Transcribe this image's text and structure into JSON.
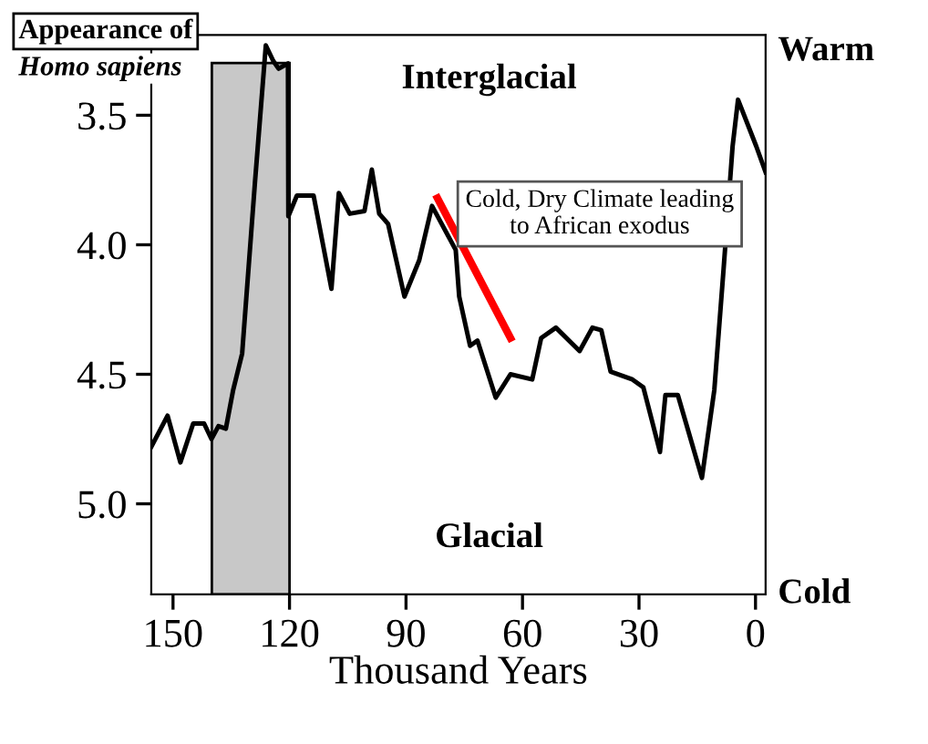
{
  "chart_data": {
    "type": "line",
    "xlabel": "Thousand Years",
    "xlim": [
      155.6,
      -2.6
    ],
    "xticks": [
      150,
      120,
      90,
      60,
      30,
      0
    ],
    "ylim": [
      5.35,
      3.19
    ],
    "yticks": [
      3.5,
      {
        "value": 4.0,
        "label": "4.0"
      },
      4.5,
      {
        "value": 5.0,
        "label": "5.0"
      }
    ],
    "grid": false,
    "legend": false,
    "series": [
      {
        "color": "#000000",
        "x": [
          155.6,
          151.4,
          148.1,
          144.8,
          142.0,
          140.1,
          138.3,
          136.4,
          134.5,
          132.2,
          128.9,
          126.1,
          124.2,
          122.8,
          120.4,
          120.3,
          118.1,
          113.8,
          111.5,
          109.2,
          107.3,
          104.5,
          100.7,
          98.8,
          96.9,
          94.6,
          90.4,
          86.6,
          83.3,
          77.2,
          76.3,
          73.5,
          71.6,
          66.9,
          63.1,
          57.5,
          55.2,
          51.4,
          45.3,
          42.0,
          39.7,
          37.3,
          31.7,
          28.9,
          27.0,
          24.6,
          23.2,
          20.0,
          13.8,
          10.6,
          8.2,
          5.9,
          4.5,
          -0.2,
          -2.6
        ],
        "values": [
          4.78,
          4.66,
          4.84,
          4.69,
          4.69,
          4.75,
          4.7,
          4.71,
          4.56,
          4.42,
          3.76,
          3.23,
          3.29,
          3.32,
          3.3,
          3.89,
          3.81,
          3.81,
          3.99,
          4.17,
          3.8,
          3.88,
          3.87,
          3.71,
          3.88,
          3.92,
          4.2,
          4.06,
          3.85,
          4.02,
          4.2,
          4.39,
          4.37,
          4.59,
          4.5,
          4.52,
          4.36,
          4.32,
          4.41,
          4.32,
          4.33,
          4.49,
          4.52,
          4.55,
          4.66,
          4.8,
          4.58,
          4.58,
          4.9,
          4.56,
          4.09,
          3.62,
          3.44,
          3.62,
          3.72
        ]
      },
      {
        "color": "#ff0000",
        "x": [
          81.9,
          63.1
        ],
        "values": [
          3.82,
          4.36
        ]
      }
    ],
    "bands": [
      {
        "axis": "x",
        "from": 140,
        "to": 120,
        "label": "Appearance of\nHomo sapiens",
        "color": "#c8c8c8"
      }
    ],
    "annotations": [
      "Interglacial",
      "Glacial",
      "Warm",
      "Cold",
      "Cold, Dry Climate leading\nto African exodus"
    ]
  }
}
